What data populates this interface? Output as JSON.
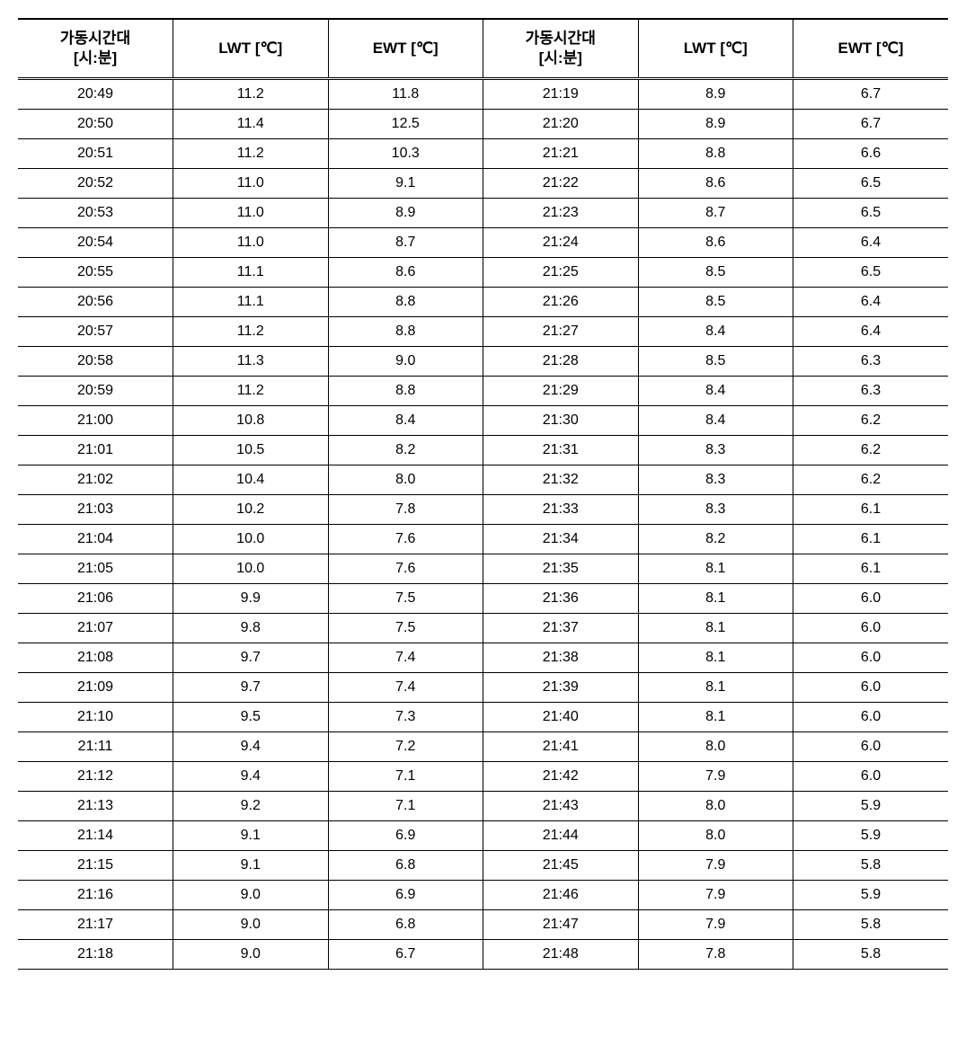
{
  "table": {
    "type": "table",
    "background_color": "#ffffff",
    "border_color": "#000000",
    "header_fontsize": 17,
    "cell_fontsize": 16,
    "columns": [
      {
        "label_line1": "가동시간대",
        "label_line2": "[시:분]",
        "width_pct": 16.66
      },
      {
        "label_line1": "LWT [℃]",
        "label_line2": "",
        "width_pct": 16.66
      },
      {
        "label_line1": "EWT [℃]",
        "label_line2": "",
        "width_pct": 16.66
      },
      {
        "label_line1": "가동시간대",
        "label_line2": "[시:분]",
        "width_pct": 16.66
      },
      {
        "label_line1": "LWT [℃]",
        "label_line2": "",
        "width_pct": 16.66
      },
      {
        "label_line1": "EWT [℃]",
        "label_line2": "",
        "width_pct": 16.66
      }
    ],
    "rows": [
      {
        "c0": "20:49",
        "c1": "11.2",
        "c2": "11.8",
        "c3": "21:19",
        "c4": "8.9",
        "c5": "6.7"
      },
      {
        "c0": "20:50",
        "c1": "11.4",
        "c2": "12.5",
        "c3": "21:20",
        "c4": "8.9",
        "c5": "6.7"
      },
      {
        "c0": "20:51",
        "c1": "11.2",
        "c2": "10.3",
        "c3": "21:21",
        "c4": "8.8",
        "c5": "6.6"
      },
      {
        "c0": "20:52",
        "c1": "11.0",
        "c2": "9.1",
        "c3": "21:22",
        "c4": "8.6",
        "c5": "6.5"
      },
      {
        "c0": "20:53",
        "c1": "11.0",
        "c2": "8.9",
        "c3": "21:23",
        "c4": "8.7",
        "c5": "6.5"
      },
      {
        "c0": "20:54",
        "c1": "11.0",
        "c2": "8.7",
        "c3": "21:24",
        "c4": "8.6",
        "c5": "6.4"
      },
      {
        "c0": "20:55",
        "c1": "11.1",
        "c2": "8.6",
        "c3": "21:25",
        "c4": "8.5",
        "c5": "6.5"
      },
      {
        "c0": "20:56",
        "c1": "11.1",
        "c2": "8.8",
        "c3": "21:26",
        "c4": "8.5",
        "c5": "6.4"
      },
      {
        "c0": "20:57",
        "c1": "11.2",
        "c2": "8.8",
        "c3": "21:27",
        "c4": "8.4",
        "c5": "6.4"
      },
      {
        "c0": "20:58",
        "c1": "11.3",
        "c2": "9.0",
        "c3": "21:28",
        "c4": "8.5",
        "c5": "6.3"
      },
      {
        "c0": "20:59",
        "c1": "11.2",
        "c2": "8.8",
        "c3": "21:29",
        "c4": "8.4",
        "c5": "6.3"
      },
      {
        "c0": "21:00",
        "c1": "10.8",
        "c2": "8.4",
        "c3": "21:30",
        "c4": "8.4",
        "c5": "6.2"
      },
      {
        "c0": "21:01",
        "c1": "10.5",
        "c2": "8.2",
        "c3": "21:31",
        "c4": "8.3",
        "c5": "6.2"
      },
      {
        "c0": "21:02",
        "c1": "10.4",
        "c2": "8.0",
        "c3": "21:32",
        "c4": "8.3",
        "c5": "6.2"
      },
      {
        "c0": "21:03",
        "c1": "10.2",
        "c2": "7.8",
        "c3": "21:33",
        "c4": "8.3",
        "c5": "6.1"
      },
      {
        "c0": "21:04",
        "c1": "10.0",
        "c2": "7.6",
        "c3": "21:34",
        "c4": "8.2",
        "c5": "6.1"
      },
      {
        "c0": "21:05",
        "c1": "10.0",
        "c2": "7.6",
        "c3": "21:35",
        "c4": "8.1",
        "c5": "6.1"
      },
      {
        "c0": "21:06",
        "c1": "9.9",
        "c2": "7.5",
        "c3": "21:36",
        "c4": "8.1",
        "c5": "6.0"
      },
      {
        "c0": "21:07",
        "c1": "9.8",
        "c2": "7.5",
        "c3": "21:37",
        "c4": "8.1",
        "c5": "6.0"
      },
      {
        "c0": "21:08",
        "c1": "9.7",
        "c2": "7.4",
        "c3": "21:38",
        "c4": "8.1",
        "c5": "6.0"
      },
      {
        "c0": "21:09",
        "c1": "9.7",
        "c2": "7.4",
        "c3": "21:39",
        "c4": "8.1",
        "c5": "6.0"
      },
      {
        "c0": "21:10",
        "c1": "9.5",
        "c2": "7.3",
        "c3": "21:40",
        "c4": "8.1",
        "c5": "6.0"
      },
      {
        "c0": "21:11",
        "c1": "9.4",
        "c2": "7.2",
        "c3": "21:41",
        "c4": "8.0",
        "c5": "6.0"
      },
      {
        "c0": "21:12",
        "c1": "9.4",
        "c2": "7.1",
        "c3": "21:42",
        "c4": "7.9",
        "c5": "6.0"
      },
      {
        "c0": "21:13",
        "c1": "9.2",
        "c2": "7.1",
        "c3": "21:43",
        "c4": "8.0",
        "c5": "5.9"
      },
      {
        "c0": "21:14",
        "c1": "9.1",
        "c2": "6.9",
        "c3": "21:44",
        "c4": "8.0",
        "c5": "5.9"
      },
      {
        "c0": "21:15",
        "c1": "9.1",
        "c2": "6.8",
        "c3": "21:45",
        "c4": "7.9",
        "c5": "5.8"
      },
      {
        "c0": "21:16",
        "c1": "9.0",
        "c2": "6.9",
        "c3": "21:46",
        "c4": "7.9",
        "c5": "5.9"
      },
      {
        "c0": "21:17",
        "c1": "9.0",
        "c2": "6.8",
        "c3": "21:47",
        "c4": "7.9",
        "c5": "5.8"
      },
      {
        "c0": "21:18",
        "c1": "9.0",
        "c2": "6.7",
        "c3": "21:48",
        "c4": "7.8",
        "c5": "5.8"
      }
    ]
  }
}
